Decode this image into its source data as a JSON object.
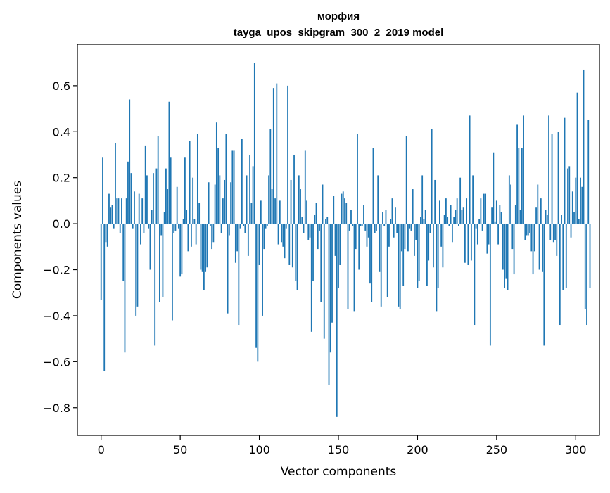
{
  "chart_data": {
    "type": "bar",
    "title_line1": "морфия",
    "title_line2": "tayga_upos_skipgram_300_2_2019 model",
    "xlabel": "Vector components",
    "ylabel": "Components values",
    "xlim": [
      -15,
      315
    ],
    "ylim": [
      -0.92,
      0.78
    ],
    "xticks": [
      0,
      50,
      100,
      150,
      200,
      250,
      300
    ],
    "xtick_labels": [
      "0",
      "50",
      "100",
      "150",
      "200",
      "250",
      "300"
    ],
    "yticks": [
      -0.8,
      -0.6,
      -0.4,
      -0.2,
      0.0,
      0.2,
      0.4,
      0.6
    ],
    "ytick_labels": [
      "−0.8",
      "−0.6",
      "−0.4",
      "−0.2",
      "0.0",
      "0.2",
      "0.4",
      "0.6"
    ],
    "bar_color": "#1f77b4",
    "grid": false,
    "values": [
      -0.33,
      0.29,
      -0.64,
      -0.08,
      -0.1,
      0.13,
      0.07,
      0.08,
      -0.02,
      0.35,
      0.11,
      0.11,
      -0.04,
      0.11,
      -0.25,
      -0.56,
      0.11,
      0.27,
      0.54,
      0.22,
      -0.02,
      0.14,
      -0.4,
      -0.36,
      0.13,
      -0.09,
      0.11,
      -0.04,
      0.34,
      0.21,
      -0.02,
      -0.2,
      0.06,
      0.22,
      -0.53,
      0.24,
      0.38,
      -0.34,
      -0.05,
      -0.32,
      0.05,
      0.24,
      0.15,
      0.53,
      0.29,
      -0.42,
      -0.04,
      -0.03,
      0.16,
      -0.02,
      -0.23,
      -0.22,
      0.02,
      0.29,
      0.06,
      -0.12,
      0.36,
      -0.1,
      0.2,
      0.02,
      -0.09,
      0.39,
      0.09,
      -0.2,
      -0.21,
      -0.29,
      -0.21,
      -0.19,
      0.18,
      -0.01,
      -0.11,
      -0.08,
      0.17,
      0.44,
      0.33,
      0.21,
      -0.04,
      0.11,
      0.19,
      0.39,
      -0.39,
      -0.05,
      0.18,
      0.32,
      0.32,
      -0.17,
      -0.12,
      -0.44,
      -0.02,
      0.37,
      -0.01,
      -0.04,
      0.21,
      -0.14,
      0.3,
      0.09,
      0.25,
      0.7,
      -0.54,
      -0.6,
      -0.18,
      0.1,
      -0.4,
      -0.11,
      -0.02,
      -0.01,
      0.21,
      0.41,
      0.15,
      0.59,
      0.11,
      0.61,
      -0.09,
      0.1,
      -0.08,
      -0.1,
      -0.15,
      -0.02,
      0.6,
      -0.18,
      0.19,
      -0.19,
      0.3,
      -0.25,
      -0.29,
      0.21,
      0.15,
      0.03,
      -0.04,
      0.32,
      0.1,
      -0.07,
      -0.06,
      -0.47,
      -0.25,
      0.04,
      0.09,
      -0.11,
      -0.03,
      -0.34,
      0.17,
      -0.5,
      0.02,
      0.03,
      -0.7,
      -0.56,
      -0.43,
      0.12,
      -0.14,
      -0.84,
      -0.28,
      -0.18,
      0.13,
      0.14,
      0.11,
      0.09,
      -0.37,
      -0.03,
      0.06,
      -0.01,
      -0.38,
      -0.11,
      0.39,
      -0.2,
      -0.01,
      -0.01,
      0.08,
      -0.03,
      -0.1,
      -0.06,
      -0.26,
      -0.34,
      0.33,
      -0.04,
      -0.03,
      0.21,
      -0.21,
      -0.36,
      0.05,
      -0.01,
      0.06,
      -0.32,
      -0.1,
      0.02,
      0.11,
      -0.06,
      0.07,
      -0.04,
      -0.36,
      -0.37,
      -0.12,
      -0.27,
      -0.11,
      0.38,
      -0.12,
      -0.02,
      -0.03,
      0.15,
      -0.14,
      -0.07,
      -0.28,
      -0.25,
      0.03,
      0.21,
      0.02,
      0.06,
      -0.27,
      -0.16,
      -0.04,
      0.41,
      -0.19,
      0.19,
      -0.38,
      -0.28,
      0.1,
      -0.1,
      -0.19,
      0.04,
      0.11,
      0.03,
      -0.01,
      0.08,
      -0.08,
      0.03,
      0.06,
      0.11,
      -0.01,
      0.2,
      0.06,
      0.07,
      -0.17,
      0.11,
      -0.18,
      0.47,
      -0.16,
      0.21,
      -0.44,
      -0.02,
      -0.09,
      0.02,
      0.11,
      -0.03,
      0.13,
      0.13,
      -0.13,
      -0.09,
      -0.53,
      0.07,
      0.31,
      0.01,
      0.1,
      -0.09,
      0.08,
      0.05,
      -0.2,
      -0.28,
      -0.24,
      -0.29,
      0.21,
      0.17,
      -0.11,
      -0.22,
      0.08,
      0.43,
      0.33,
      0.06,
      0.33,
      0.47,
      -0.07,
      -0.05,
      -0.05,
      -0.04,
      -0.12,
      -0.22,
      -0.12,
      0.07,
      0.17,
      -0.2,
      0.11,
      -0.21,
      -0.53,
      0.06,
      0.04,
      0.47,
      -0.07,
      0.39,
      -0.08,
      -0.07,
      -0.14,
      0.4,
      -0.44,
      0.04,
      -0.29,
      0.46,
      -0.28,
      0.24,
      0.25,
      -0.06,
      0.14,
      0.05,
      0.2,
      0.57,
      0.02,
      0.2,
      0.16,
      0.67,
      -0.37,
      -0.44,
      0.45,
      -0.28
    ]
  }
}
